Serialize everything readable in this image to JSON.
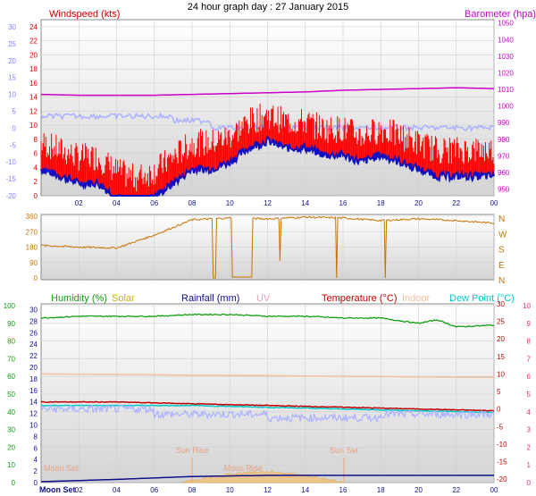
{
  "title": "24 hour graph day : 27 January 2015",
  "colors": {
    "wind": "#e00000",
    "gust": "#d00000",
    "avg": "#1010c0",
    "baro": "#cc00cc",
    "temp_range": "#aab0ff",
    "dir": "#c87000",
    "humidity": "#10a010",
    "solar": "#c8b400",
    "rainfall": "#10108c",
    "uv": "#e8a0c0",
    "temperature": "#c00000",
    "indoor": "#f0c0a0",
    "dewpoint": "#00c8c8",
    "axis_left_top": "#8080ff",
    "axis_left_bottom": "#10a010",
    "axis_right_bottom": "#e0307a"
  },
  "labels": {
    "windspeed": "Windspeed (kts)",
    "barometer": "Barometer (hpa)",
    "humidity": "Humidity (%)",
    "solar": "Solar",
    "rainfall": "Rainfall (mm)",
    "uv": "UV",
    "temperature": "Temperature (°C)",
    "indoor": "Indoor",
    "dewpoint": "Dew Point (°C)",
    "sunrise": "Sun Rise",
    "sunset": "Sun Set",
    "moonset": "Moon Set",
    "moonset_axis": "Moon Set",
    "moonrise": "Moon Rise"
  },
  "chart_data": [
    {
      "type": "line",
      "title": "24 hour graph day : 27 January 2015",
      "x_ticks": [
        "02",
        "04",
        "06",
        "08",
        "10",
        "12",
        "14",
        "16",
        "18",
        "20",
        "22",
        "00"
      ],
      "left_axis_outer": {
        "ticks": [
          30,
          25,
          20,
          15,
          10,
          5,
          0,
          -5,
          -10,
          -15,
          -20
        ]
      },
      "left_axis_inner": {
        "label": "Windspeed (kts)",
        "ticks": [
          24,
          22,
          20,
          18,
          16,
          14,
          12,
          10,
          8,
          6,
          4,
          2,
          0
        ],
        "ylim": [
          0,
          25
        ]
      },
      "right_axis": {
        "label": "Barometer (hpa)",
        "ticks": [
          1050,
          1040,
          1030,
          1020,
          1010,
          1000,
          990,
          980,
          970,
          960,
          950
        ],
        "ylim": [
          946,
          1052
        ]
      },
      "series": [
        {
          "name": "Barometer (hpa)",
          "x": [
            0,
            2,
            4,
            6,
            8,
            10,
            12,
            14,
            16,
            18,
            20,
            22,
            24
          ],
          "values": [
            1007,
            1006.5,
            1006.5,
            1006.5,
            1007,
            1007.5,
            1008,
            1008.5,
            1009.5,
            1010,
            1010.5,
            1011,
            1010.5
          ]
        },
        {
          "name": "Windspeed (kts)",
          "x": [
            0,
            1,
            2,
            3,
            4,
            5,
            6,
            7,
            8,
            9,
            10,
            11,
            12,
            13,
            14,
            15,
            16,
            17,
            18,
            19,
            20,
            21,
            22,
            23,
            24
          ],
          "values": [
            5,
            4,
            3,
            3,
            1,
            0,
            1,
            3,
            5,
            5,
            6,
            8,
            9,
            8,
            8,
            7,
            7,
            6,
            7,
            6,
            5,
            4,
            4,
            4,
            4
          ]
        }
      ]
    },
    {
      "type": "line",
      "right_axis": {
        "ticks": [
          "N",
          "W",
          "S",
          "E",
          "N"
        ]
      },
      "left_axis": {
        "ticks": [
          360,
          270,
          180,
          90,
          0
        ],
        "ylim": [
          0,
          360
        ]
      },
      "series": [
        {
          "name": "direction",
          "x": [
            0,
            2,
            4,
            6,
            8,
            10,
            12,
            14,
            16,
            18,
            20,
            22,
            24
          ],
          "values": [
            190,
            180,
            175,
            250,
            340,
            350,
            345,
            355,
            350,
            335,
            345,
            335,
            320
          ]
        }
      ]
    },
    {
      "type": "line",
      "x_ticks": [
        "Moon Set",
        "02",
        "04",
        "06",
        "08",
        "10",
        "12",
        "14",
        "16",
        "18",
        "20",
        "22",
        "00"
      ],
      "left_axis_outer": {
        "ticks": [
          100,
          90,
          80,
          70,
          60,
          50,
          40,
          30,
          20,
          10,
          0
        ]
      },
      "left_axis_inner": {
        "ticks": [
          30,
          28,
          26,
          24,
          22,
          20,
          18,
          16,
          14,
          12,
          10,
          8,
          6,
          4,
          2,
          0
        ]
      },
      "right_axis_inner": {
        "ticks": [
          30,
          25,
          20,
          15,
          10,
          5,
          0,
          -5,
          -10,
          -15,
          -20
        ]
      },
      "right_axis_outer": {
        "ticks": [
          10,
          9,
          8,
          7,
          6,
          5,
          4,
          3,
          2,
          1,
          0
        ]
      },
      "series": [
        {
          "name": "Humidity (%)",
          "x": [
            0,
            2,
            4,
            6,
            8,
            10,
            12,
            14,
            16,
            18,
            20,
            21,
            22,
            24
          ],
          "values": [
            93,
            94,
            94,
            94,
            95,
            95,
            94,
            94,
            93,
            93,
            90,
            92,
            88,
            89
          ]
        },
        {
          "name": "Temperature (°C)",
          "x": [
            0,
            4,
            8,
            12,
            16,
            20,
            24
          ],
          "values": [
            2,
            2,
            1.5,
            1,
            0.5,
            0,
            -0.5
          ]
        },
        {
          "name": "Dew Point (°C)",
          "x": [
            0,
            4,
            8,
            12,
            16,
            20,
            24
          ],
          "values": [
            1,
            1,
            1,
            0.5,
            0,
            -0.5,
            -1
          ]
        },
        {
          "name": "Indoor",
          "x": [
            0,
            12,
            24
          ],
          "values": [
            10,
            9.5,
            9
          ]
        },
        {
          "name": "Rainfall (mm)",
          "x": [
            0,
            4,
            8,
            12,
            16,
            20,
            24
          ],
          "values": [
            0,
            0.4,
            0.9,
            1.1,
            1.1,
            1.1,
            1.1
          ]
        }
      ],
      "annotations": [
        "Sun Rise",
        "Sun Set",
        "Moon Set",
        "Moon Rise"
      ]
    }
  ]
}
